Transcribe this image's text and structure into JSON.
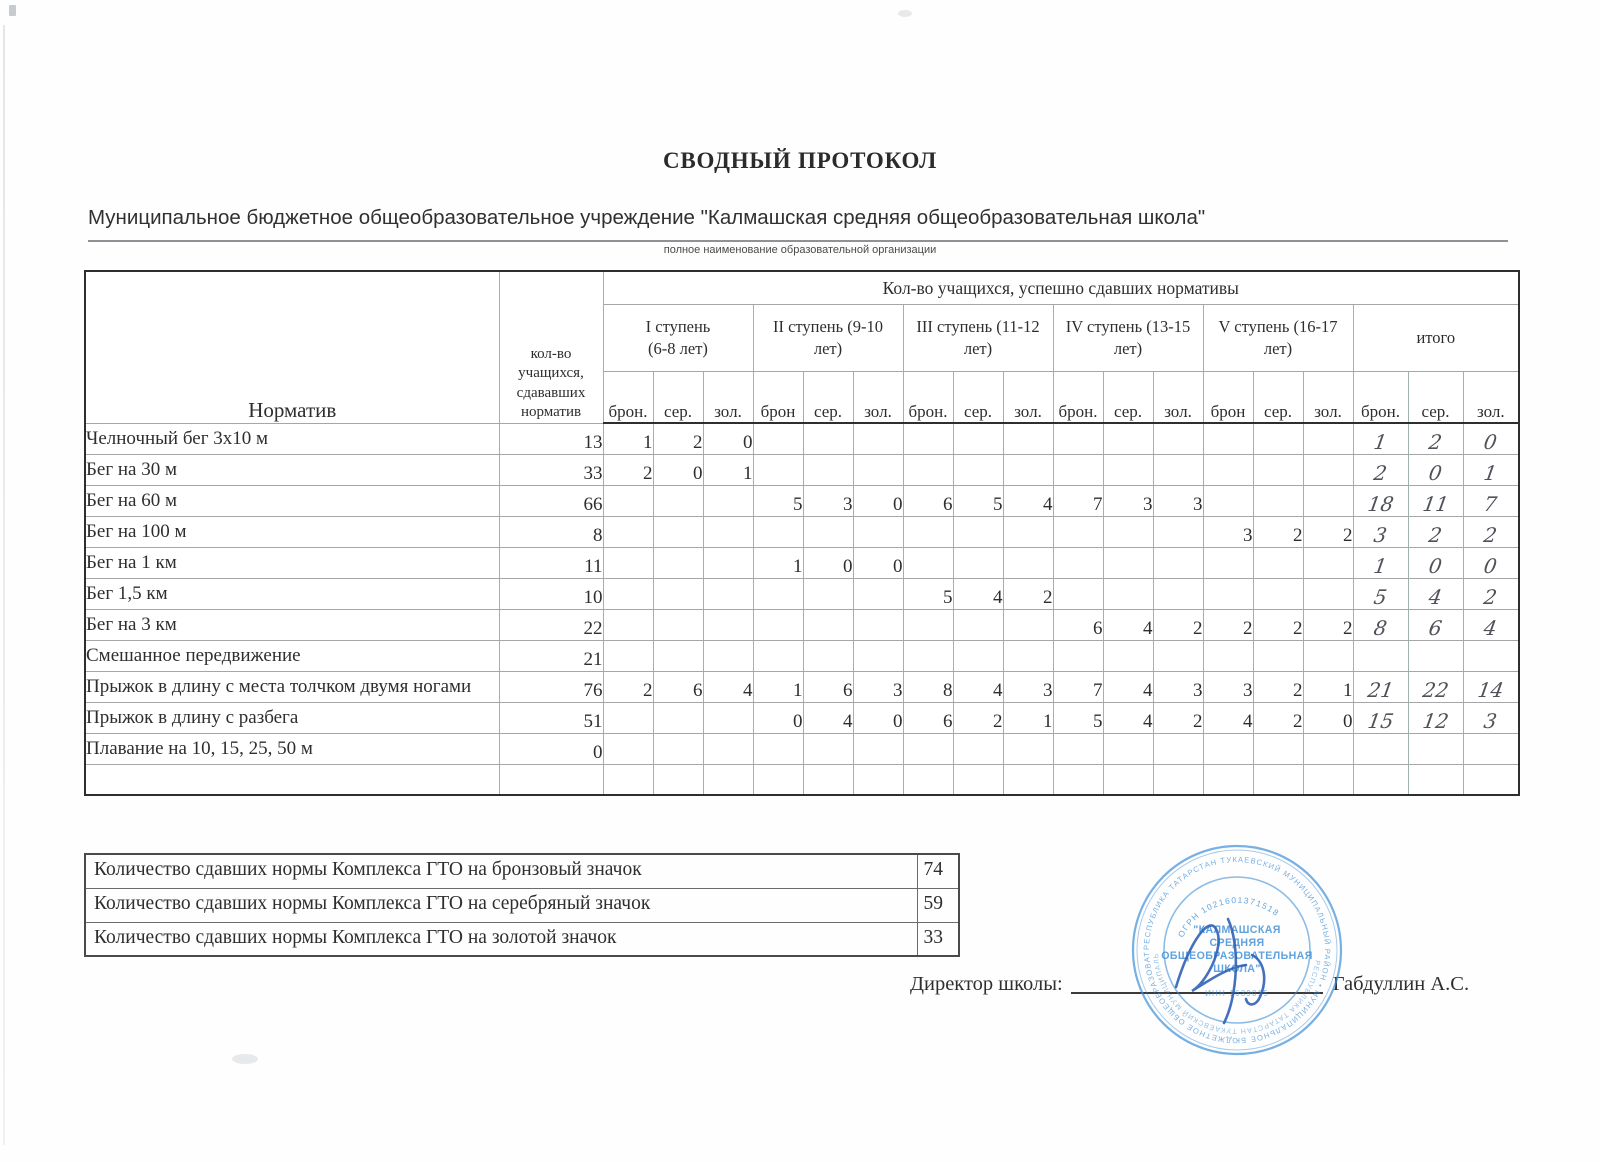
{
  "page": {
    "title": "СВОДНЫЙ ПРОТОКОЛ",
    "org_name": "Муниципальное бюджетное общеобразовательное учреждение \"Калмашская средняя общеобразовательная школа\"",
    "org_caption": "полное наименование образовательной организации"
  },
  "table": {
    "col_normative": "Норматив",
    "col_count": "кол-во\nучащихся,\nсдававших\nнорматив",
    "col_passed": "Кол-во учащихся, успешно сдавших нормативы",
    "stages": [
      {
        "label": "I ступень\n(6-8 лет)",
        "sub": [
          "брон.",
          "сер.",
          "зол."
        ]
      },
      {
        "label": "II ступень (9-10\nлет)",
        "sub": [
          "брон",
          "сер.",
          "зол."
        ]
      },
      {
        "label": "III ступень (11-12\nлет)",
        "sub": [
          "брон.",
          "сер.",
          "зол."
        ]
      },
      {
        "label": "IV ступень (13-15\nлет)",
        "sub": [
          "брон.",
          "сер.",
          "зол."
        ]
      },
      {
        "label": "V ступень (16-17\nлет)",
        "sub": [
          "брон",
          "сер.",
          "зол."
        ]
      },
      {
        "label": "итого",
        "sub": [
          "брон.",
          "сер.",
          "зол."
        ]
      }
    ],
    "rows": [
      {
        "label": "Челночный бег 3х10 м",
        "count": "13",
        "cells": [
          "1",
          "2",
          "0",
          "",
          "",
          "",
          "",
          "",
          "",
          "",
          "",
          "",
          "",
          "",
          ""
        ],
        "totals": [
          "1",
          "2",
          "0"
        ]
      },
      {
        "label": "Бег на 30 м",
        "count": "33",
        "cells": [
          "2",
          "0",
          "1",
          "",
          "",
          "",
          "",
          "",
          "",
          "",
          "",
          "",
          "",
          "",
          ""
        ],
        "totals": [
          "2",
          "0",
          "1"
        ]
      },
      {
        "label": "Бег на 60 м",
        "count": "66",
        "cells": [
          "",
          "",
          "",
          "5",
          "3",
          "0",
          "6",
          "5",
          "4",
          "7",
          "3",
          "3",
          "",
          "",
          ""
        ],
        "totals": [
          "18",
          "11",
          "7"
        ]
      },
      {
        "label": "Бег на 100 м",
        "count": "8",
        "cells": [
          "",
          "",
          "",
          "",
          "",
          "",
          "",
          "",
          "",
          "",
          "",
          "",
          "3",
          "2",
          "2"
        ],
        "totals": [
          "3",
          "2",
          "2"
        ]
      },
      {
        "label": "Бег на 1 км",
        "count": "11",
        "cells": [
          "",
          "",
          "",
          "1",
          "0",
          "0",
          "",
          "",
          "",
          "",
          "",
          "",
          "",
          "",
          ""
        ],
        "totals": [
          "1",
          "0",
          "0"
        ]
      },
      {
        "label": "Бег 1,5 км",
        "count": "10",
        "cells": [
          "",
          "",
          "",
          "",
          "",
          "",
          "5",
          "4",
          "2",
          "",
          "",
          "",
          "",
          "",
          ""
        ],
        "totals": [
          "5",
          "4",
          "2"
        ]
      },
      {
        "label": "Бег на 3 км",
        "count": "22",
        "cells": [
          "",
          "",
          "",
          "",
          "",
          "",
          "",
          "",
          "",
          "6",
          "4",
          "2",
          "2",
          "2",
          "2"
        ],
        "totals": [
          "8",
          "6",
          "4"
        ]
      },
      {
        "label": "Смешанное передвижение",
        "count": "21",
        "cells": [
          "",
          "",
          "",
          "",
          "",
          "",
          "",
          "",
          "",
          "",
          "",
          "",
          "",
          "",
          ""
        ],
        "totals": [
          "",
          "",
          ""
        ]
      },
      {
        "label": "Прыжок в длину с места толчком двумя ногами",
        "count": "76",
        "cells": [
          "2",
          "6",
          "4",
          "1",
          "6",
          "3",
          "8",
          "4",
          "3",
          "7",
          "4",
          "3",
          "3",
          "2",
          "1"
        ],
        "totals": [
          "21",
          "22",
          "14"
        ]
      },
      {
        "label": "Прыжок в длину с разбега",
        "count": "51",
        "cells": [
          "",
          "",
          "",
          "0",
          "4",
          "0",
          "6",
          "2",
          "1",
          "5",
          "4",
          "2",
          "4",
          "2",
          "0"
        ],
        "totals": [
          "15",
          "12",
          "3"
        ]
      },
      {
        "label": "Плавание на 10, 15, 25, 50 м",
        "count": "0",
        "cells": [
          "",
          "",
          "",
          "",
          "",
          "",
          "",
          "",
          "",
          "",
          "",
          "",
          "",
          "",
          ""
        ],
        "totals": [
          "",
          "",
          ""
        ]
      },
      {
        "label": "",
        "count": "",
        "cells": [
          "",
          "",
          "",
          "",
          "",
          "",
          "",
          "",
          "",
          "",
          "",
          "",
          "",
          "",
          ""
        ],
        "totals": [
          "",
          "",
          ""
        ]
      }
    ]
  },
  "summary": {
    "rows": [
      {
        "label": "Количество  сдавших нормы Комплекса ГТО на бронзовый значок",
        "value": "74"
      },
      {
        "label": "Количество сдавших нормы Комплекса ГТО на серебряный значок",
        "value": "59"
      },
      {
        "label": "Количество  сдавших нормы Комплекса ГТО на золотой значок",
        "value": "33"
      }
    ]
  },
  "signature": {
    "label": "Директор школы:",
    "name": "Габдуллин А.С."
  },
  "stamp": {
    "ring_text": "РЕСПУБЛИКА ТАТАРСТАН ТУКАЕВСКИЙ МУНИЦИПАЛЬНЫЙ РАЙОН • МУНИЦИПАЛЬНОЕ БЮДЖЕТНОЕ ОБЩЕОБРАЗОВАТЕЛЬНОЕ УЧРЕЖДЕНИЕ",
    "ogrn": "ОГРН 1021601371518",
    "inn": "ИНН 1639015",
    "center_lines": [
      "\"КАЛМАШСКАЯ",
      "СРЕДНЯЯ",
      "ОБЩЕОБРАЗОВАТЕЛЬНАЯ",
      "ШКОЛА\""
    ]
  },
  "colors": {
    "stamp_blue": "#3d8fd6",
    "signature_blue": "#2b5cb5",
    "handwriting_gray": "#4f5258"
  }
}
